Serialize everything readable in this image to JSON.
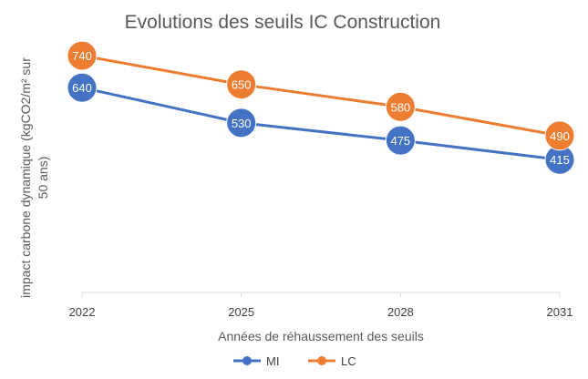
{
  "chart_data": {
    "type": "line",
    "title": "Evolutions des seuils IC Construction",
    "xlabel": "Années de réhaussement des seuils",
    "ylabel_lines": [
      "impact carbone dynamique  (kgCO2/m² sur",
      "50 ans)"
    ],
    "categories": [
      "2022",
      "2025",
      "2028",
      "2031"
    ],
    "ylim": [
      0,
      800
    ],
    "grid": false,
    "legend": "bottom",
    "series": [
      {
        "name": "MI",
        "color": "#4472C4",
        "values": [
          640,
          530,
          475,
          415
        ],
        "labels": [
          "640",
          "530",
          "475",
          "415"
        ]
      },
      {
        "name": "LC",
        "color": "#ED7D31",
        "values": [
          740,
          650,
          580,
          490
        ],
        "labels": [
          "740",
          "650",
          "580",
          "490"
        ]
      }
    ]
  }
}
